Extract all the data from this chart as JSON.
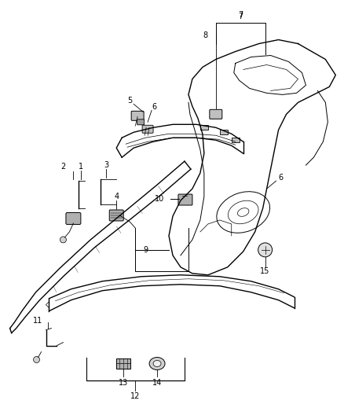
{
  "bg_color": "#ffffff",
  "line_color": "#000000",
  "fig_width": 4.38,
  "fig_height": 5.33,
  "dpi": 100
}
